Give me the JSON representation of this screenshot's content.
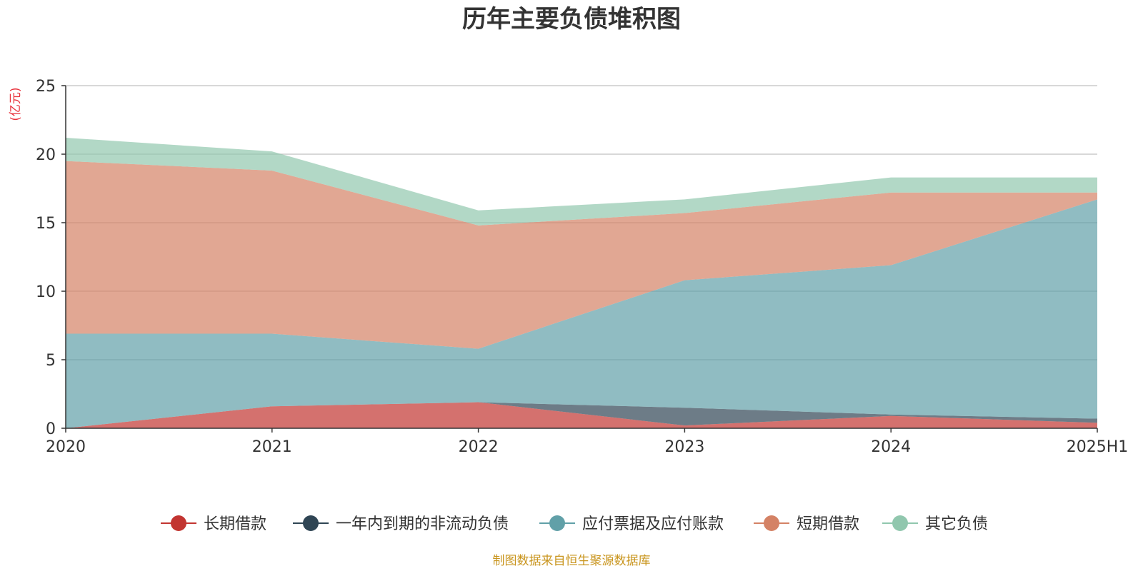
{
  "chart_data": {
    "type": "area",
    "stacked": true,
    "title": "历年主要负债堆积图",
    "ylabel": "(亿元)",
    "x": [
      "2020",
      "2021",
      "2022",
      "2023",
      "2024",
      "2025H1"
    ],
    "ylim": [
      0,
      25
    ],
    "yticks": [
      0,
      5,
      10,
      15,
      20,
      25
    ],
    "grid": true,
    "legend_position": "bottom",
    "series": [
      {
        "name": "长期借款",
        "color": "#c23531",
        "values": [
          0.0,
          1.6,
          1.9,
          0.2,
          0.9,
          0.4
        ]
      },
      {
        "name": "一年内到期的非流动负债",
        "color": "#2f4554",
        "values": [
          0.0,
          0.0,
          0.0,
          1.3,
          0.1,
          0.3
        ]
      },
      {
        "name": "应付票据及应付账款",
        "color": "#61a0a8",
        "values": [
          6.9,
          5.3,
          3.9,
          9.3,
          10.9,
          16.0
        ]
      },
      {
        "name": "短期借款",
        "color": "#d48265",
        "values": [
          12.6,
          11.9,
          9.0,
          4.9,
          5.3,
          0.5
        ]
      },
      {
        "name": "其它负债",
        "color": "#91c7ae",
        "values": [
          1.7,
          1.4,
          1.1,
          1.0,
          1.1,
          1.1
        ]
      }
    ]
  },
  "source_note": "制图数据来自恒生聚源数据库"
}
